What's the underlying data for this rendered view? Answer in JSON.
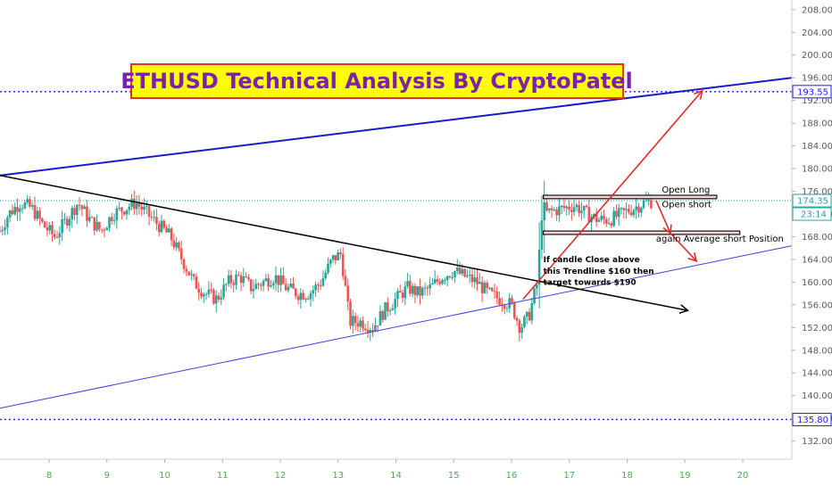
{
  "chart_data": {
    "type": "candlestick",
    "title": "ETHUSD Technical Analysis By CryptoPatel",
    "y_ticks": [
      132,
      136,
      140,
      144,
      148,
      152,
      156,
      160,
      164,
      168,
      172,
      176,
      180,
      184,
      188,
      192,
      196,
      200,
      204,
      208
    ],
    "y_ticks_labels": [
      "132.00",
      "136.00",
      "140.00",
      "144.00",
      "148.00",
      "152.00",
      "156.00",
      "160.00",
      "164.00",
      "168.00",
      "172.00",
      "176.00",
      "180.00",
      "184.00",
      "188.00",
      "192.00",
      "196.00",
      "200.00",
      "204.00",
      "208.00"
    ],
    "ylim": [
      128.8,
      209.7
    ],
    "x_ticks": [
      8,
      9,
      10,
      11,
      12,
      13,
      14,
      15,
      16,
      17,
      18,
      19,
      20
    ],
    "x_ticks_labels": [
      "8",
      "9",
      "10",
      "11",
      "12",
      "13",
      "14",
      "15",
      "16",
      "17",
      "18",
      "19",
      "20"
    ],
    "xlim": [
      7.15,
      20.85
    ],
    "price_labels": [
      {
        "text": "193.55",
        "value": 193.55,
        "color": "#1a1aff",
        "line": "dotted"
      },
      {
        "text": "174.35",
        "value": 174.35,
        "color": "#26a69a",
        "line": "dotted-green"
      },
      {
        "text": "135.80",
        "value": 135.8,
        "color": "#1a1aff",
        "line": "dotted"
      }
    ],
    "countdown": "23:14",
    "trendlines": [
      {
        "name": "upper-channel",
        "color": "#1a1acc",
        "width": 2,
        "from": [
          7.15,
          178.8
        ],
        "to": [
          20.85,
          196.0
        ]
      },
      {
        "name": "lower-channel",
        "color": "#4040dd",
        "width": 1,
        "from": [
          7.15,
          137.8
        ],
        "to": [
          20.85,
          166.4
        ]
      },
      {
        "name": "descending-trendline",
        "color": "#000000",
        "width": 1.5,
        "from": [
          7.15,
          178.8
        ],
        "to": [
          19.05,
          155.0
        ],
        "arrow": true
      }
    ],
    "target_arrows": [
      {
        "from": [
          16.2,
          157.0
        ],
        "to": [
          19.3,
          193.7
        ]
      },
      {
        "from": [
          18.5,
          174.4
        ],
        "to": [
          18.75,
          168.6
        ]
      },
      {
        "from": [
          18.75,
          168.6
        ],
        "to": [
          19.2,
          163.7
        ]
      }
    ],
    "levels": [
      {
        "name": "open-long-zone",
        "from": [
          16.55,
          175.0
        ],
        "to": [
          19.55,
          175.0
        ],
        "height": 0.6
      },
      {
        "name": "open-short-zone",
        "from": [
          16.55,
          168.7
        ],
        "to": [
          19.95,
          168.7
        ],
        "height": 0.6
      }
    ],
    "annotations": [
      {
        "text": "Open Long",
        "x": 18.6,
        "y": 175.8
      },
      {
        "text": "Open short",
        "x": 18.6,
        "y": 173.2
      },
      {
        "text": "again Average short Position",
        "x": 18.5,
        "y": 167.1
      },
      {
        "text": "If candle Close above",
        "x": 16.55,
        "y": 163.5
      },
      {
        "text": "this Trendline $160 then",
        "x": 16.55,
        "y": 161.5
      },
      {
        "text": "target towards $190",
        "x": 16.55,
        "y": 159.5
      }
    ],
    "candles_anchor": [
      [
        7.15,
        169
      ],
      [
        7.3,
        172
      ],
      [
        7.5,
        174
      ],
      [
        7.7,
        173
      ],
      [
        7.9,
        170
      ],
      [
        8.1,
        168
      ],
      [
        8.3,
        171
      ],
      [
        8.5,
        174
      ],
      [
        8.7,
        171
      ],
      [
        8.9,
        169
      ],
      [
        9.1,
        172
      ],
      [
        9.3,
        173
      ],
      [
        9.5,
        174
      ],
      [
        9.7,
        172
      ],
      [
        9.9,
        170
      ],
      [
        10.1,
        168
      ],
      [
        10.3,
        164
      ],
      [
        10.5,
        160
      ],
      [
        10.7,
        158
      ],
      [
        10.9,
        157
      ],
      [
        11.1,
        160
      ],
      [
        11.3,
        161
      ],
      [
        11.5,
        159
      ],
      [
        11.7,
        160
      ],
      [
        11.9,
        161
      ],
      [
        12.1,
        159
      ],
      [
        12.3,
        158
      ],
      [
        12.5,
        158
      ],
      [
        12.7,
        160
      ],
      [
        12.9,
        164
      ],
      [
        13.05,
        165
      ],
      [
        13.2,
        153
      ],
      [
        13.4,
        153
      ],
      [
        13.6,
        152
      ],
      [
        13.8,
        155
      ],
      [
        14.0,
        157
      ],
      [
        14.2,
        159
      ],
      [
        14.4,
        158
      ],
      [
        14.6,
        159
      ],
      [
        14.8,
        161
      ],
      [
        15.0,
        162
      ],
      [
        15.2,
        161
      ],
      [
        15.4,
        160
      ],
      [
        15.6,
        158
      ],
      [
        15.8,
        157
      ],
      [
        16.0,
        156
      ],
      [
        16.15,
        152
      ],
      [
        16.3,
        154
      ],
      [
        16.45,
        160
      ],
      [
        16.55,
        172
      ],
      [
        16.7,
        172.5
      ],
      [
        16.9,
        173
      ],
      [
        17.1,
        173.5
      ],
      [
        17.3,
        172
      ],
      [
        17.5,
        171
      ],
      [
        17.7,
        171
      ],
      [
        17.9,
        172
      ],
      [
        18.1,
        173
      ],
      [
        18.3,
        174
      ],
      [
        18.45,
        174.3
      ]
    ]
  }
}
